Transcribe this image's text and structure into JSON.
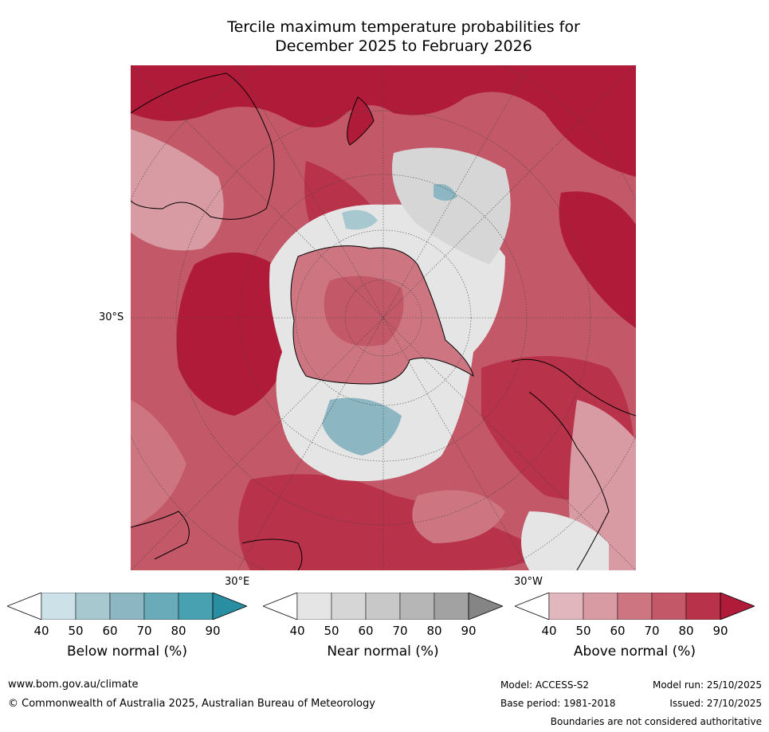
{
  "title_line1": "Tercile maximum temperature probabilities for",
  "title_line2": "December 2025 to February 2026",
  "map": {
    "projection": "south-polar-stereographic",
    "graticule_labels": {
      "lat": "30°S",
      "lon_east": "30°E",
      "lon_west": "30°W"
    }
  },
  "colorbars": [
    {
      "id": "below",
      "label": "Below normal (%)",
      "ticks": [
        "40",
        "50",
        "60",
        "70",
        "80",
        "90"
      ],
      "colors": [
        "#ffffff",
        "#cde2e8",
        "#a8c8cf",
        "#8cb6c1",
        "#6aabb9",
        "#48a1b1",
        "#2a8ea3"
      ]
    },
    {
      "id": "near",
      "label": "Near normal (%)",
      "ticks": [
        "40",
        "50",
        "60",
        "70",
        "80",
        "90"
      ],
      "colors": [
        "#ffffff",
        "#e5e5e5",
        "#d6d6d6",
        "#c8c8c8",
        "#b6b6b6",
        "#a2a2a2",
        "#858585"
      ]
    },
    {
      "id": "above",
      "label": "Above normal (%)",
      "ticks": [
        "40",
        "50",
        "60",
        "70",
        "80",
        "90"
      ],
      "colors": [
        "#ffffff",
        "#e2b6bd",
        "#d89aa3",
        "#cd7682",
        "#c25868",
        "#b83249",
        "#b01b3a"
      ]
    }
  ],
  "footer": {
    "url": "www.bom.gov.au/climate",
    "copyright": "© Commonwealth of Australia 2025, Australian Bureau of Meteorology",
    "model": "Model: ACCESS-S2",
    "model_run": "Model run: 25/10/2025",
    "base_period": "Base period: 1981-2018",
    "issued": "Issued: 27/10/2025",
    "disclaimer": "Boundaries are not considered authoritative"
  }
}
